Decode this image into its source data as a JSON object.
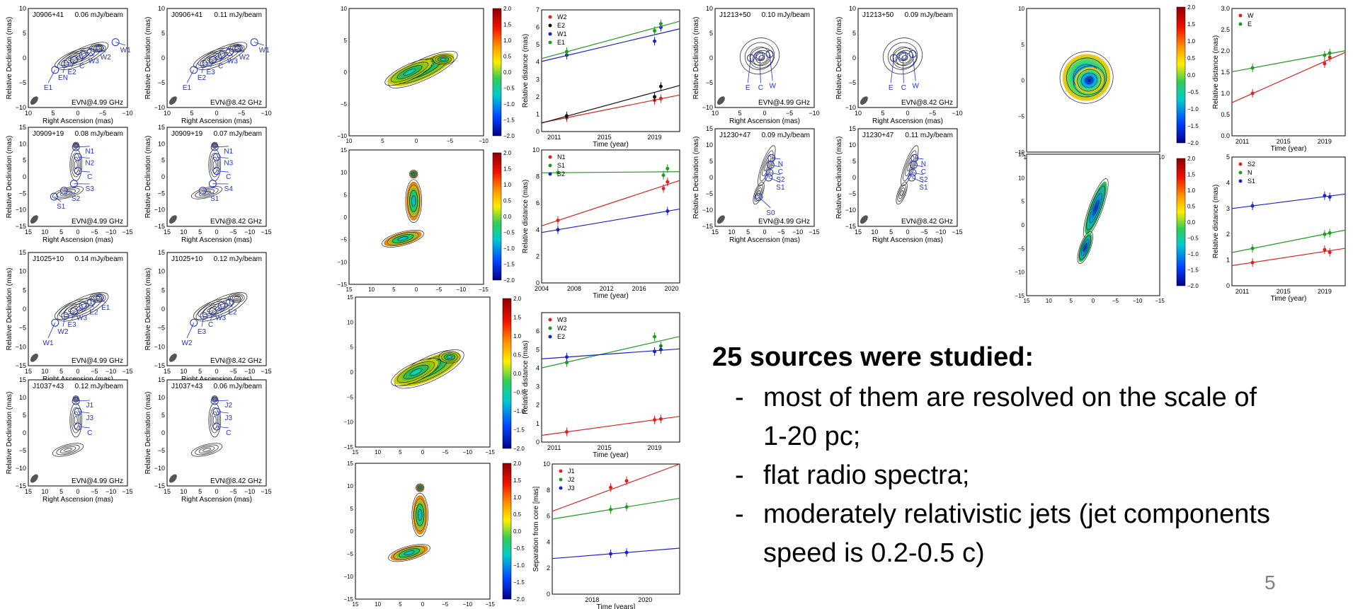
{
  "colors": {
    "contour": "#333333",
    "component": "#2233cc",
    "beam": "#555555"
  },
  "colorbar": {
    "ticks": [
      "2.0",
      "1.5",
      "1.0",
      "0.5",
      "0.0",
      "−0.5",
      "−1.0",
      "−1.5",
      "−2.0"
    ]
  },
  "labels": {
    "ra": "Right Ascension (mas)",
    "dec": "Relative Declination (mas)",
    "reldist": "Relative distance (mas)",
    "sep": "Separation from core [mas]",
    "time_year": "Time (year)",
    "time_years": "Time [years]"
  },
  "panels": [
    {
      "source": "J0906+41",
      "noise": "0.06 mJy/beam",
      "band": "EVN@4.99 GHz",
      "range": 10,
      "ticks": [
        "10",
        "5",
        "0",
        "−5",
        "−10"
      ],
      "comps": [
        "E1",
        "EN",
        "E2",
        "C",
        "W3",
        "W2",
        "W1"
      ],
      "spec": "Diag"
    },
    {
      "source": "J0906+41",
      "noise": "0.11 mJy/beam",
      "band": "EVN@8.42 GHz",
      "range": 10,
      "ticks": [
        "10",
        "5",
        "0",
        "−5",
        "−10"
      ],
      "comps": [
        "E1",
        "E2",
        "E3",
        "C",
        "W3",
        "W2",
        "W1"
      ],
      "spec": "Diag"
    },
    {
      "source": "J1213+50",
      "noise": "0.10 mJy/beam",
      "band": "EVN@4.99 GHz",
      "range": 10,
      "ticks": [
        "10",
        "5",
        "0",
        "−5",
        "−10"
      ],
      "comps": [
        "E",
        "C",
        "W"
      ],
      "spec": "Round"
    },
    {
      "source": "J1213+50",
      "noise": "0.09 mJy/beam",
      "band": "EVN@8.42 GHz",
      "range": 10,
      "ticks": [
        "10",
        "5",
        "0",
        "−5",
        "−10"
      ],
      "comps": [
        "E",
        "C",
        "W"
      ],
      "spec": "Round"
    },
    {
      "source": "J0909+19",
      "noise": "0.08 mJy/beam",
      "band": "EVN@4.99 GHz",
      "range": 15,
      "ticks": [
        "15",
        "10",
        "5",
        "0",
        "−5",
        "−10",
        "−15"
      ],
      "comps": [
        "N1",
        "N2",
        "C",
        "S3",
        "S2",
        "S1"
      ],
      "spec": "Vert"
    },
    {
      "source": "J0909+19",
      "noise": "0.07 mJy/beam",
      "band": "EVN@8.42 GHz",
      "range": 15,
      "ticks": [
        "15",
        "10",
        "5",
        "0",
        "−5",
        "−10",
        "−15"
      ],
      "comps": [
        "N1",
        "N3",
        "C",
        "S4",
        "S1"
      ],
      "spec": "Vert"
    },
    {
      "source": "J1230+47",
      "noise": "0.09 mJy/beam",
      "band": "EVN@4.99 GHz",
      "range": 15,
      "ticks": [
        "15",
        "10",
        "5",
        "0",
        "−5",
        "−10",
        "−15"
      ],
      "comps": [
        "N",
        "C",
        "S2",
        "S1",
        "S0"
      ],
      "spec": "Long"
    },
    {
      "source": "J1230+47",
      "noise": "0.11 mJy/beam",
      "band": "EVN@8.42 GHz",
      "range": 15,
      "ticks": [
        "15",
        "10",
        "5",
        "0",
        "−5",
        "−10",
        "−15"
      ],
      "comps": [
        "N",
        "C",
        "S2",
        "S1"
      ],
      "spec": "Long"
    },
    {
      "source": "J1025+10",
      "noise": "0.14 mJy/beam",
      "band": "EVN@4.99 GHz",
      "range": 15,
      "ticks": [
        "15",
        "10",
        "5",
        "0",
        "−5",
        "−10",
        "−15"
      ],
      "comps": [
        "W1",
        "W2",
        "E3",
        "W3",
        "E2",
        "E1"
      ],
      "spec": "Diag"
    },
    {
      "source": "J1025+10",
      "noise": "0.12 mJy/beam",
      "band": "EVN@8.42 GHz",
      "range": 15,
      "ticks": [
        "15",
        "10",
        "5",
        "0",
        "−5",
        "−10",
        "−15"
      ],
      "comps": [
        "W2",
        "E3",
        "C",
        "W3",
        "E2"
      ],
      "spec": "Diag"
    },
    {
      "source": "J1037+43",
      "noise": "0.12 mJy/beam",
      "band": "EVN@4.99 GHz",
      "range": 15,
      "ticks": [
        "15",
        "10",
        "5",
        "0",
        "−5",
        "−10",
        "−15"
      ],
      "comps": [
        "J1",
        "J3",
        "C"
      ],
      "spec": "Vert"
    },
    {
      "source": "J1037+43",
      "noise": "0.06 mJy/beam",
      "band": "EVN@8.42 GHz",
      "range": 15,
      "ticks": [
        "15",
        "10",
        "5",
        "0",
        "−5",
        "−10",
        "−15"
      ],
      "comps": [
        "J2",
        "J3",
        "C"
      ],
      "spec": "Vert"
    }
  ],
  "spectral": [
    {
      "ticks": [
        "10",
        "5",
        "0",
        "−5",
        "−10"
      ]
    },
    {
      "ticks": [
        "10",
        "5",
        "0",
        "−5",
        "−10"
      ]
    },
    {
      "ticks": [
        "15",
        "10",
        "5",
        "0",
        "−5",
        "−10",
        "−15"
      ]
    },
    {
      "ticks": [
        "15",
        "10",
        "5",
        "0",
        "−5",
        "−10",
        "−15"
      ]
    },
    {
      "ticks": [
        "15",
        "10",
        "5",
        "0",
        "−5",
        "−10",
        "−15"
      ]
    },
    {
      "ticks": [
        "15",
        "10",
        "5",
        "0",
        "−5",
        "−10",
        "−15"
      ]
    }
  ],
  "chart_data": [
    {
      "type": "scatter",
      "xlim": [
        2010,
        2021
      ],
      "ylim": [
        0,
        7
      ],
      "xticks": [
        "2011",
        "2015",
        "2019"
      ],
      "yticks": [
        "0",
        "1",
        "2",
        "3",
        "4",
        "5",
        "6",
        "7"
      ],
      "ylabel": "Relative distance (mas)",
      "xlabel": "Time (year)",
      "legend": "top-left",
      "series": [
        {
          "name": "W2",
          "color": "#dd2222",
          "x": [
            2012,
            2019,
            2019.5
          ],
          "y": [
            0.8,
            1.8,
            1.9
          ]
        },
        {
          "name": "E2",
          "color": "#111111",
          "x": [
            2012,
            2019,
            2019.5
          ],
          "y": [
            0.9,
            2.0,
            2.6
          ]
        },
        {
          "name": "W1",
          "color": "#1a22cc",
          "x": [
            2012,
            2019,
            2019.5
          ],
          "y": [
            4.4,
            5.2,
            6.0
          ]
        },
        {
          "name": "E1",
          "color": "#229922",
          "x": [
            2012,
            2019,
            2019.5
          ],
          "y": [
            4.6,
            5.8,
            6.2
          ]
        }
      ]
    },
    {
      "type": "scatter",
      "xlim": [
        2010,
        2021
      ],
      "ylim": [
        0,
        3
      ],
      "xticks": [
        "2011",
        "2015",
        "2019"
      ],
      "yticks": [
        "0.0",
        "0.5",
        "1.0",
        "1.5",
        "2.0",
        "2.5",
        "3.0"
      ],
      "ylabel": "Relative distance (mas)",
      "xlabel": "Time (year)",
      "legend": "top-left",
      "series": [
        {
          "name": "W",
          "color": "#dd2222",
          "x": [
            2012,
            2019,
            2019.5
          ],
          "y": [
            1.0,
            1.7,
            1.85
          ]
        },
        {
          "name": "E",
          "color": "#229922",
          "x": [
            2012,
            2019,
            2019.5
          ],
          "y": [
            1.6,
            1.9,
            1.95
          ]
        }
      ]
    },
    {
      "type": "scatter",
      "xlim": [
        2004,
        2021
      ],
      "ylim": [
        0,
        10
      ],
      "xticks": [
        "2004",
        "2008",
        "2012",
        "2016",
        "2020"
      ],
      "yticks": [
        "0",
        "2",
        "4",
        "6",
        "8",
        "10"
      ],
      "ylabel": "Relative distance (mas)",
      "xlabel": "Time (year)",
      "legend": "top-left",
      "series": [
        {
          "name": "N1",
          "color": "#dd2222",
          "x": [
            2006,
            2019,
            2019.5
          ],
          "y": [
            4.7,
            7.1,
            7.6
          ]
        },
        {
          "name": "S1",
          "color": "#229922",
          "x": [
            2006,
            2019,
            2019.5
          ],
          "y": [
            8.3,
            8.1,
            8.6
          ]
        },
        {
          "name": "S2",
          "color": "#1a22cc",
          "x": [
            2006,
            2019.5
          ],
          "y": [
            4.0,
            5.4
          ]
        }
      ]
    },
    {
      "type": "scatter",
      "xlim": [
        2010,
        2021
      ],
      "ylim": [
        0,
        5
      ],
      "xticks": [
        "2011",
        "2015",
        "2019"
      ],
      "yticks": [
        "0",
        "1",
        "2",
        "3",
        "4",
        "5"
      ],
      "ylabel": "Relative distance (mas)",
      "xlabel": "Time (year)",
      "legend": "top-left",
      "series": [
        {
          "name": "S2",
          "color": "#dd2222",
          "x": [
            2012,
            2019,
            2019.5
          ],
          "y": [
            0.9,
            1.4,
            1.3
          ]
        },
        {
          "name": "N",
          "color": "#229922",
          "x": [
            2012,
            2019,
            2019.5
          ],
          "y": [
            1.45,
            2.0,
            2.05
          ]
        },
        {
          "name": "S1",
          "color": "#1a22cc",
          "x": [
            2012,
            2019,
            2019.5
          ],
          "y": [
            3.1,
            3.5,
            3.45
          ]
        }
      ]
    },
    {
      "type": "scatter",
      "xlim": [
        2010,
        2021
      ],
      "ylim": [
        0,
        7
      ],
      "xticks": [
        "2011",
        "2015",
        "2019"
      ],
      "yticks": [
        "0",
        "1",
        "2",
        "3",
        "4",
        "5",
        "6"
      ],
      "ylabel": "Relative distance (mas)",
      "xlabel": "Time (year)",
      "legend": "top-left",
      "series": [
        {
          "name": "W3",
          "color": "#dd2222",
          "x": [
            2012,
            2019,
            2019.5
          ],
          "y": [
            0.55,
            1.2,
            1.25
          ]
        },
        {
          "name": "W2",
          "color": "#229922",
          "x": [
            2012,
            2019,
            2019.5
          ],
          "y": [
            4.3,
            5.7,
            5.2
          ]
        },
        {
          "name": "E2",
          "color": "#1a22cc",
          "x": [
            2012,
            2019,
            2019.5
          ],
          "y": [
            4.6,
            4.9,
            5.0
          ]
        }
      ]
    },
    {
      "type": "scatter",
      "xlim": [
        2016.5,
        2021.3
      ],
      "ylim": [
        0,
        10
      ],
      "xticks": [
        "2018",
        "2020"
      ],
      "yticks": [
        "0",
        "2",
        "4",
        "6",
        "8",
        "10"
      ],
      "ylabel": "Separation from core [mas]",
      "xlabel": "Time [years]",
      "legend": "top-left",
      "series": [
        {
          "name": "J1",
          "color": "#dd2222",
          "x": [
            2018.7,
            2019.3
          ],
          "y": [
            8.2,
            8.7
          ]
        },
        {
          "name": "J2",
          "color": "#229922",
          "x": [
            2018.7,
            2019.3
          ],
          "y": [
            6.5,
            6.7
          ]
        },
        {
          "name": "J3",
          "color": "#1a22cc",
          "x": [
            2018.7,
            2019.3
          ],
          "y": [
            3.1,
            3.2
          ]
        }
      ]
    }
  ],
  "bullets": {
    "heading": "25 sources were studied:",
    "items": [
      {
        "dash": "-",
        "lines": [
          "most of them are resolved on the scale of",
          "1-20 pc;"
        ]
      },
      {
        "dash": "-",
        "lines": [
          "flat radio spectra;"
        ]
      },
      {
        "dash": "-",
        "lines": [
          "moderately relativistic jets (jet components",
          "speed is 0.2-0.5 c)"
        ]
      }
    ]
  },
  "page_number": "5"
}
